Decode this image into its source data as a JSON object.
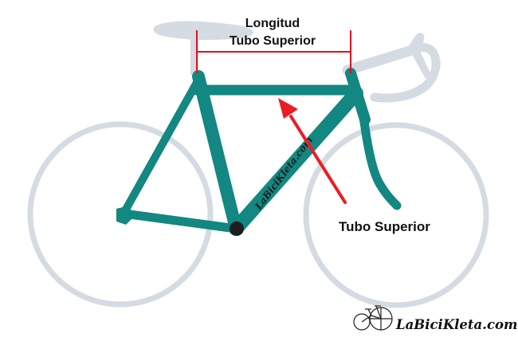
{
  "diagram": {
    "measure_label_line1": "Longitud",
    "measure_label_line2": "Tubo Superior",
    "pointer_label": "Tubo Superior",
    "frame_decal": "LaBiciKleta.com",
    "brand_logo_text": "LaBiciKleta.com"
  },
  "colors": {
    "frame": "#138782",
    "frame_dark": "#0d6e6a",
    "silhouette": "#d5dbe3",
    "measure_red": "#e3121c",
    "arrow_red": "#ec1c24",
    "bottom_bracket": "#1e1e1e",
    "text": "#111111"
  },
  "icons": [
    "bicycle-icon"
  ]
}
